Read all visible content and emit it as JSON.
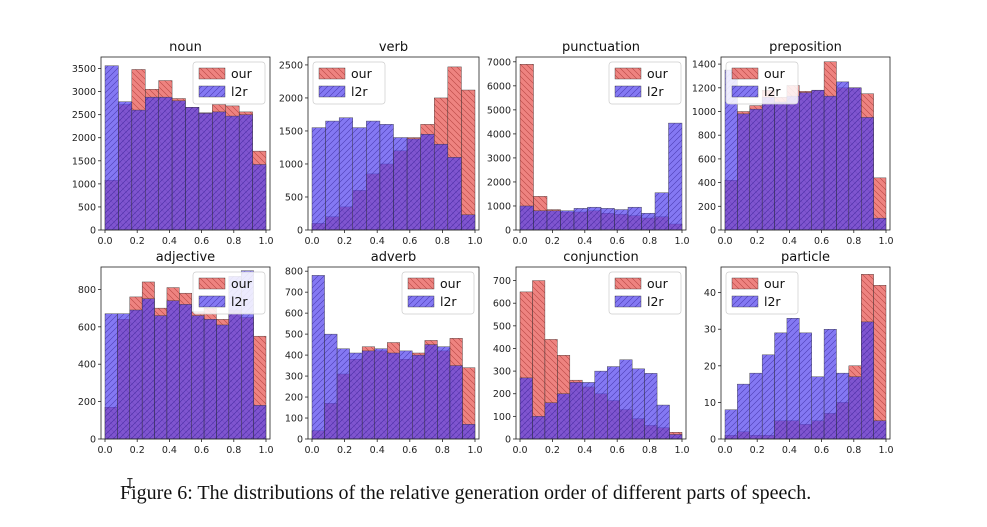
{
  "chart_data": [
    {
      "type": "bar",
      "title": "noun",
      "xlim": [
        0,
        1
      ],
      "ylim": [
        0,
        3750
      ],
      "yticks": [
        0,
        500,
        1000,
        1500,
        2000,
        2500,
        3000,
        3500
      ],
      "xticks": [
        "0.0",
        "0.2",
        "0.4",
        "0.6",
        "0.8",
        "1.0"
      ],
      "legend_position": "top-right",
      "series": [
        {
          "name": "our",
          "color": "#e8534f",
          "hatch": "\\\\",
          "values": [
            1080,
            2720,
            3480,
            3050,
            3240,
            2850,
            2660,
            2540,
            2720,
            2690,
            2560,
            1710
          ]
        },
        {
          "name": "l2r",
          "color": "#5544ee",
          "hatch": "//",
          "values": [
            3560,
            2780,
            2600,
            2880,
            2880,
            2800,
            2660,
            2530,
            2560,
            2470,
            2500,
            1420
          ]
        }
      ]
    },
    {
      "type": "bar",
      "title": "verb",
      "xlim": [
        0,
        1
      ],
      "ylim": [
        0,
        2620
      ],
      "yticks": [
        0,
        500,
        1000,
        1500,
        2000,
        2500
      ],
      "xticks": [
        "0.0",
        "0.2",
        "0.4",
        "0.6",
        "0.8",
        "1.0"
      ],
      "legend_position": "top-left",
      "series": [
        {
          "name": "our",
          "color": "#e8534f",
          "hatch": "\\\\",
          "values": [
            100,
            200,
            350,
            600,
            850,
            1000,
            1200,
            1400,
            1600,
            2000,
            2470,
            2120
          ]
        },
        {
          "name": "l2r",
          "color": "#5544ee",
          "hatch": "//",
          "values": [
            1550,
            1650,
            1700,
            1550,
            1650,
            1600,
            1400,
            1380,
            1450,
            1300,
            1100,
            230
          ]
        }
      ]
    },
    {
      "type": "bar",
      "title": "punctuation",
      "xlim": [
        0,
        1
      ],
      "ylim": [
        0,
        7200
      ],
      "yticks": [
        0,
        1000,
        2000,
        3000,
        4000,
        5000,
        6000,
        7000
      ],
      "xticks": [
        "0.0",
        "0.2",
        "0.4",
        "0.6",
        "0.8",
        "1.0"
      ],
      "legend_position": "top-right",
      "series": [
        {
          "name": "our",
          "color": "#e8534f",
          "hatch": "\\\\",
          "values": [
            6900,
            1400,
            850,
            750,
            750,
            800,
            700,
            650,
            600,
            500,
            550,
            250
          ]
        },
        {
          "name": "l2r",
          "color": "#5544ee",
          "hatch": "//",
          "values": [
            1000,
            800,
            800,
            800,
            900,
            950,
            900,
            850,
            950,
            700,
            1550,
            4450
          ]
        }
      ]
    },
    {
      "type": "bar",
      "title": "preposition",
      "xlim": [
        0,
        1
      ],
      "ylim": [
        0,
        1460
      ],
      "yticks": [
        0,
        200,
        400,
        600,
        800,
        1000,
        1200,
        1400
      ],
      "xticks": [
        "0.0",
        "0.2",
        "0.4",
        "0.6",
        "0.8",
        "1.0"
      ],
      "legend_position": "top-left",
      "series": [
        {
          "name": "our",
          "color": "#e8534f",
          "hatch": "\\\\",
          "values": [
            420,
            1000,
            1050,
            1180,
            1120,
            1220,
            1170,
            1180,
            1420,
            1200,
            1200,
            1150,
            440
          ]
        },
        {
          "name": "l2r",
          "color": "#5544ee",
          "hatch": "//",
          "values": [
            1350,
            980,
            1020,
            1120,
            1080,
            1130,
            1160,
            1180,
            1130,
            1250,
            1200,
            950,
            100
          ]
        }
      ]
    },
    {
      "type": "bar",
      "title": "adjective",
      "xlim": [
        0,
        1
      ],
      "ylim": [
        0,
        920
      ],
      "yticks": [
        0,
        200,
        400,
        600,
        800
      ],
      "xticks": [
        "0.0",
        "0.2",
        "0.4",
        "0.6",
        "0.8",
        "1.0"
      ],
      "legend_position": "top-right",
      "series": [
        {
          "name": "our",
          "color": "#e8534f",
          "hatch": "\\\\",
          "values": [
            170,
            640,
            760,
            840,
            700,
            810,
            780,
            680,
            700,
            640,
            690,
            650,
            550
          ]
        },
        {
          "name": "l2r",
          "color": "#5544ee",
          "hatch": "//",
          "values": [
            670,
            670,
            690,
            750,
            660,
            740,
            720,
            660,
            640,
            610,
            870,
            900,
            180
          ]
        }
      ]
    },
    {
      "type": "bar",
      "title": "adverb",
      "xlim": [
        0,
        1
      ],
      "ylim": [
        0,
        820
      ],
      "yticks": [
        0,
        100,
        200,
        300,
        400,
        500,
        600,
        700,
        800
      ],
      "xticks": [
        "0.0",
        "0.2",
        "0.4",
        "0.6",
        "0.8",
        "1.0"
      ],
      "legend_position": "top-right",
      "series": [
        {
          "name": "our",
          "color": "#e8534f",
          "hatch": "\\\\",
          "values": [
            40,
            170,
            310,
            380,
            440,
            420,
            460,
            380,
            410,
            470,
            420,
            480,
            340
          ]
        },
        {
          "name": "l2r",
          "color": "#5544ee",
          "hatch": "//",
          "values": [
            780,
            500,
            430,
            410,
            420,
            430,
            410,
            420,
            400,
            450,
            440,
            350,
            70
          ]
        }
      ]
    },
    {
      "type": "bar",
      "title": "conjunction",
      "xlim": [
        0,
        1
      ],
      "ylim": [
        0,
        760
      ],
      "yticks": [
        0,
        100,
        200,
        300,
        400,
        500,
        600,
        700
      ],
      "xticks": [
        "0.0",
        "0.2",
        "0.4",
        "0.6",
        "0.8",
        "1.0"
      ],
      "legend_position": "top-right",
      "series": [
        {
          "name": "our",
          "color": "#e8534f",
          "hatch": "\\\\",
          "values": [
            650,
            700,
            440,
            370,
            260,
            230,
            200,
            170,
            130,
            90,
            60,
            50,
            30
          ]
        },
        {
          "name": "l2r",
          "color": "#5544ee",
          "hatch": "//",
          "values": [
            270,
            100,
            160,
            200,
            250,
            250,
            300,
            320,
            350,
            310,
            290,
            150,
            20
          ]
        }
      ]
    },
    {
      "type": "bar",
      "title": "particle",
      "xlim": [
        0,
        1
      ],
      "ylim": [
        0,
        47
      ],
      "yticks": [
        0,
        10,
        20,
        30,
        40
      ],
      "xticks": [
        "0.0",
        "0.2",
        "0.4",
        "0.6",
        "0.8",
        "1.0"
      ],
      "legend_position": "top-left",
      "series": [
        {
          "name": "our",
          "color": "#e8534f",
          "hatch": "\\\\",
          "values": [
            1,
            2,
            1,
            1,
            5,
            5,
            4,
            5,
            7,
            10,
            20,
            45,
            42
          ]
        },
        {
          "name": "l2r",
          "color": "#5544ee",
          "hatch": "//",
          "values": [
            8,
            15,
            18,
            23,
            29,
            33,
            29,
            17,
            30,
            18,
            17,
            32,
            5
          ]
        }
      ]
    }
  ],
  "caption": "Figure 6: The distributions of the relative generation order of different parts of speech.",
  "cursor_glyph": "I"
}
